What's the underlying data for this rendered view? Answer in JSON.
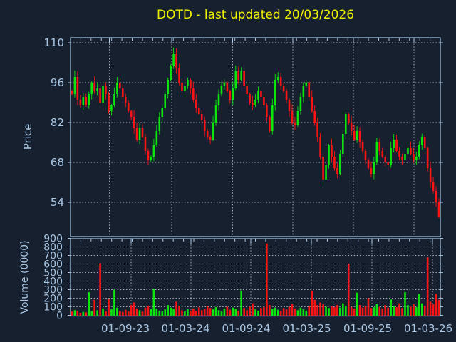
{
  "window": {
    "background": "#16202f"
  },
  "chart_data": {
    "type": "candlestick+volume",
    "title": "DOTD - last updated 20/03/2026",
    "symbol": "DOTD",
    "last_updated": "20/03/2026",
    "x_axis": {
      "tick_labels": [
        "01-09-23",
        "01-03-24",
        "01-09-24",
        "01-03-25",
        "01-09-25",
        "01-03-26"
      ]
    },
    "price_panel": {
      "ylabel": "Price",
      "yticks": [
        110,
        96,
        82,
        68,
        54
      ],
      "ylim": [
        42,
        112
      ],
      "grid": true
    },
    "volume_panel": {
      "ylabel": "Volume (0000)",
      "yticks": [
        900,
        800,
        700,
        600,
        500,
        400,
        300,
        200,
        100,
        0
      ],
      "ylim": [
        0,
        905
      ],
      "grid": true
    },
    "series": {
      "note_resolution": "weekly bars, Mar-2023 to Mar-2026",
      "closes": [
        92,
        98,
        90,
        88,
        91,
        88,
        92,
        96,
        93,
        94,
        89,
        95,
        92,
        86,
        88,
        92,
        96,
        94,
        91,
        89,
        86,
        84,
        80,
        76,
        80,
        77,
        72,
        69,
        70,
        74,
        79,
        84,
        87,
        92,
        97,
        102,
        106,
        101,
        96,
        93,
        95,
        97,
        94,
        90,
        87,
        85,
        83,
        79,
        77,
        76,
        82,
        88,
        92,
        95,
        96,
        93,
        90,
        94,
        100,
        97,
        100,
        95,
        92,
        89,
        88,
        90,
        93,
        91,
        88,
        84,
        79,
        88,
        97,
        98,
        95,
        93,
        90,
        86,
        82,
        81,
        86,
        91,
        95,
        96,
        91,
        86,
        82,
        77,
        70,
        62,
        67,
        74,
        70,
        66,
        64,
        71,
        78,
        85,
        82,
        79,
        76,
        79,
        75,
        72,
        69,
        66,
        64,
        68,
        75,
        72,
        70,
        68,
        67,
        73,
        76,
        72,
        70,
        69,
        71,
        73,
        71,
        69,
        70,
        74,
        77,
        73,
        66,
        61,
        58,
        54,
        49
      ],
      "volumes": [
        45,
        60,
        55,
        30,
        40,
        35,
        270,
        50,
        180,
        60,
        610,
        80,
        45,
        190,
        70,
        300,
        90,
        50,
        40,
        65,
        45,
        120,
        150,
        80,
        60,
        45,
        90,
        110,
        70,
        310,
        80,
        55,
        45,
        70,
        120,
        90,
        75,
        160,
        110,
        60,
        45,
        70,
        55,
        80,
        50,
        95,
        60,
        75,
        110,
        85,
        70,
        95,
        60,
        45,
        80,
        100,
        65,
        90,
        75,
        55,
        290,
        85,
        60,
        100,
        140,
        70,
        55,
        85,
        95,
        840,
        120,
        75,
        90,
        65,
        50,
        85,
        70,
        100,
        130,
        80,
        60,
        90,
        70,
        55,
        110,
        290,
        180,
        120,
        150,
        130,
        100,
        85,
        110,
        95,
        120,
        90,
        140,
        110,
        600,
        95,
        80,
        265,
        120,
        90,
        110,
        200,
        85,
        95,
        130,
        100,
        80,
        120,
        90,
        185,
        110,
        95,
        140,
        85,
        270,
        120,
        100,
        130,
        95,
        250,
        140,
        110,
        680,
        160,
        130,
        250,
        180
      ],
      "open_rule": "previous close",
      "price_min_observed": 47,
      "price_max_observed": 108
    },
    "colors": {
      "up": "#0ce60c",
      "down": "#fa1414",
      "frame": "#a9c6e3",
      "grid": "#c3c9d1",
      "tick_text": "#a9c6e3",
      "title_text": "#f0f000",
      "background": "#16202f"
    }
  }
}
